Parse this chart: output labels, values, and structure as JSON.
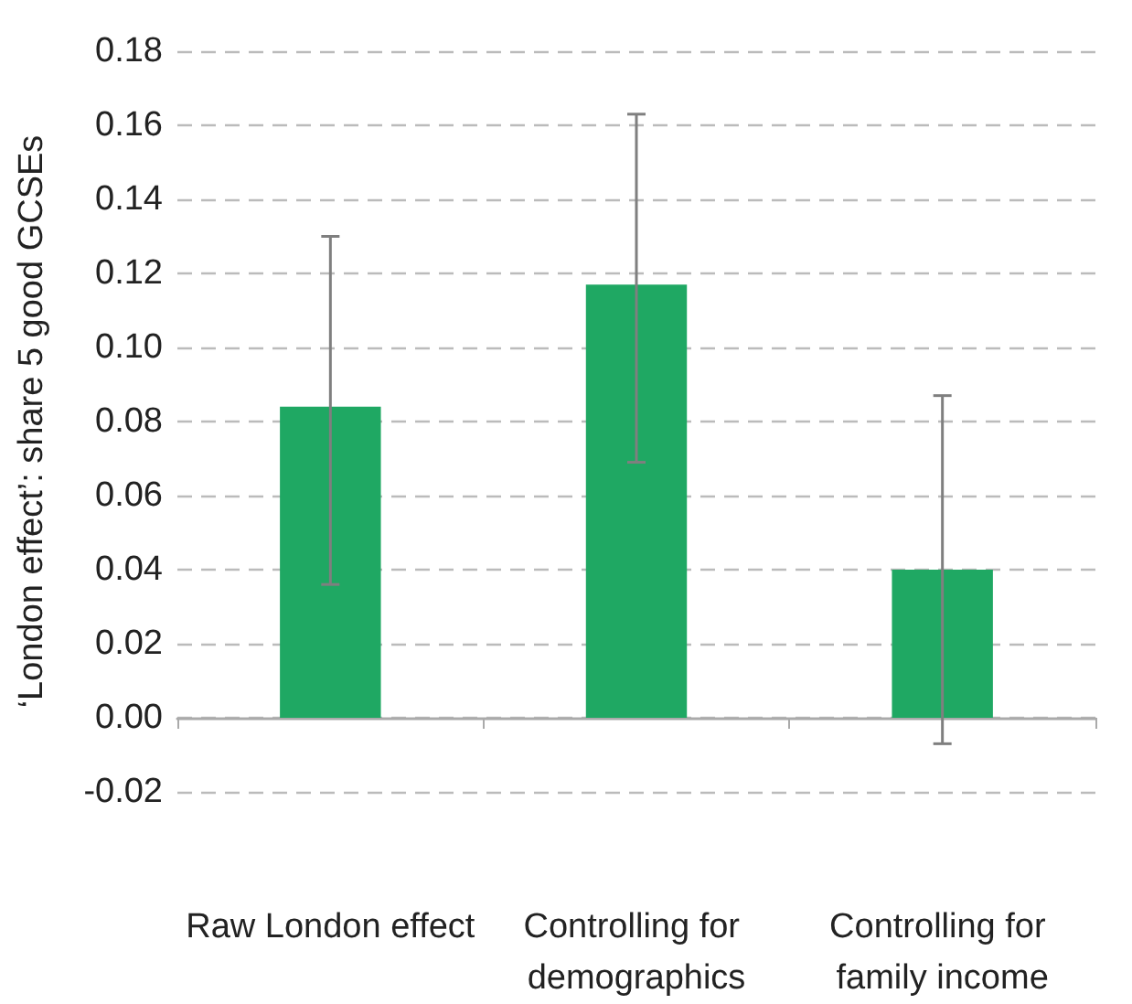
{
  "chart_data": {
    "type": "bar",
    "ylabel": "‘London effect’: share 5 good GCSEs",
    "categories": [
      "Raw London effect",
      "Controlling for demographics",
      "Controlling for family income"
    ],
    "values": [
      0.084,
      0.117,
      0.04
    ],
    "errors": [
      [
        0.036,
        0.13
      ],
      [
        0.069,
        0.163
      ],
      [
        -0.007,
        0.087
      ]
    ],
    "color": "#1fa863",
    "ylim": [
      -0.02,
      0.18
    ],
    "yticks": [
      {
        "value": -0.02,
        "label": "-0.02"
      },
      {
        "value": 0,
        "label": "0.00"
      },
      {
        "value": 0.02,
        "label": "0.02"
      },
      {
        "value": 0.04,
        "label": "0.04"
      },
      {
        "value": 0.06,
        "label": "0.06"
      },
      {
        "value": 0.08,
        "label": "0.08"
      },
      {
        "value": 0.1,
        "label": "0.10"
      },
      {
        "value": 0.12,
        "label": "0.12"
      },
      {
        "value": 0.14,
        "label": "0.14"
      },
      {
        "value": 0.16,
        "label": "0.16"
      },
      {
        "value": 0.18,
        "label": "0.18"
      }
    ],
    "grid": "y"
  }
}
